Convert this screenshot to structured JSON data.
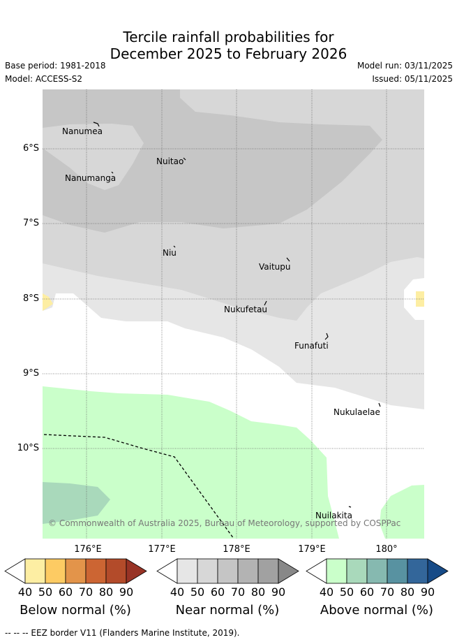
{
  "title_line1": "Tercile rainfall probabilities for",
  "title_line2": "December 2025 to February 2026",
  "base_period": "Base period: 1981-2018",
  "model": "Model: ACCESS-S2",
  "model_run": "Model run: 03/11/2025",
  "issued": "Issued: 05/11/2025",
  "latitude_labels": [
    "6°S",
    "7°S",
    "8°S",
    "9°S",
    "10°S"
  ],
  "longitude_labels": [
    "176°E",
    "177°E",
    "178°E",
    "179°E",
    "180°"
  ],
  "places": [
    "Nanumea",
    "Nuitao",
    "Nanumanga",
    "Niu",
    "Vaitupu",
    "Nukufetau",
    "Funafuti",
    "Nukulaelae",
    "Nuilakita"
  ],
  "copyright": "© Commonwealth of Australia 2025, Bureau of Meteorology, supported by COSPPac",
  "colorbars": {
    "ticks": [
      "40",
      "50",
      "60",
      "70",
      "80",
      "90"
    ],
    "below": {
      "title": "Below normal (%)",
      "colors": [
        "#ffffff",
        "#fdeea3",
        "#fdcb63",
        "#e3944a",
        "#cc6533",
        "#b34b2a",
        "#983325"
      ]
    },
    "near": {
      "title": "Near normal (%)",
      "colors": [
        "#ffffff",
        "#e6e6e6",
        "#d7d7d7",
        "#c5c5c5",
        "#b3b3b3",
        "#a1a1a1",
        "#888888"
      ]
    },
    "above": {
      "title": "Above normal (%)",
      "colors": [
        "#ffffff",
        "#caffca",
        "#a9d9bb",
        "#86b9b0",
        "#5892a1",
        "#33669a",
        "#174b87"
      ]
    }
  },
  "footer": "--  --  -- EEZ border V11 (Flanders Marine Institute, 2019)."
}
